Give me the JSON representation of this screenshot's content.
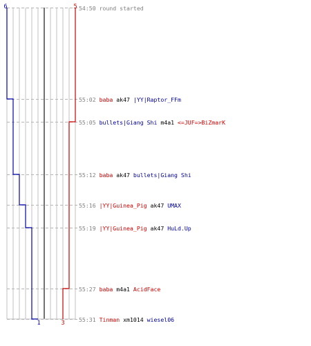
{
  "chart_data": {
    "type": "line",
    "title": "",
    "team_colors": {
      "red": "#cc0000",
      "blue": "#0000aa",
      "grid": "#c0c0c0",
      "axis_line": "#444444",
      "dash": "#b4b4b4"
    },
    "team_counts": {
      "blue": {
        "start": 6,
        "end": 1
      },
      "red": {
        "start": 5,
        "end": 3
      }
    },
    "series": [
      {
        "color": "#0000aa",
        "x_steps": [
          0,
          1,
          2,
          3,
          4,
          5
        ],
        "y_times": [
          "55:02",
          "55:12",
          "55:16",
          "55:19",
          "55:31"
        ]
      },
      {
        "color": "#cc0000",
        "x_steps": [
          0,
          1,
          2
        ],
        "y_times": [
          "55:05",
          "55:27"
        ]
      }
    ]
  },
  "events": [
    {
      "time": "54:50",
      "parts": [
        {
          "text": "round started",
          "role": "msg"
        }
      ]
    },
    {
      "time": "55:02",
      "parts": [
        {
          "text": "baba",
          "role": "red"
        },
        {
          "text": "ak47",
          "role": "weapon"
        },
        {
          "text": "|YY|Raptor_FFm",
          "role": "blue"
        }
      ]
    },
    {
      "time": "55:05",
      "parts": [
        {
          "text": "bullets|Giang Shi",
          "role": "blue"
        },
        {
          "text": "m4a1",
          "role": "weapon"
        },
        {
          "text": "<=JUF=>BiZmarK",
          "role": "red"
        }
      ]
    },
    {
      "time": "55:12",
      "parts": [
        {
          "text": "baba",
          "role": "red"
        },
        {
          "text": "ak47",
          "role": "weapon"
        },
        {
          "text": "bullets|Giang Shi",
          "role": "blue"
        }
      ]
    },
    {
      "time": "55:16",
      "parts": [
        {
          "text": "|YY|Guinea_Pig",
          "role": "red"
        },
        {
          "text": "ak47",
          "role": "weapon"
        },
        {
          "text": "UMAX",
          "role": "blue"
        }
      ]
    },
    {
      "time": "55:19",
      "parts": [
        {
          "text": "|YY|Guinea_Pig",
          "role": "red"
        },
        {
          "text": "ak47",
          "role": "weapon"
        },
        {
          "text": "HuLd.Up",
          "role": "blue"
        }
      ]
    },
    {
      "time": "55:27",
      "parts": [
        {
          "text": "baba",
          "role": "red"
        },
        {
          "text": "m4a1",
          "role": "weapon"
        },
        {
          "text": "AcidFace",
          "role": "red"
        }
      ]
    },
    {
      "time": "55:31",
      "parts": [
        {
          "text": "Tinman",
          "role": "red"
        },
        {
          "text": "xm1014",
          "role": "weapon"
        },
        {
          "text": "wiesel06",
          "role": "blue"
        }
      ]
    }
  ]
}
